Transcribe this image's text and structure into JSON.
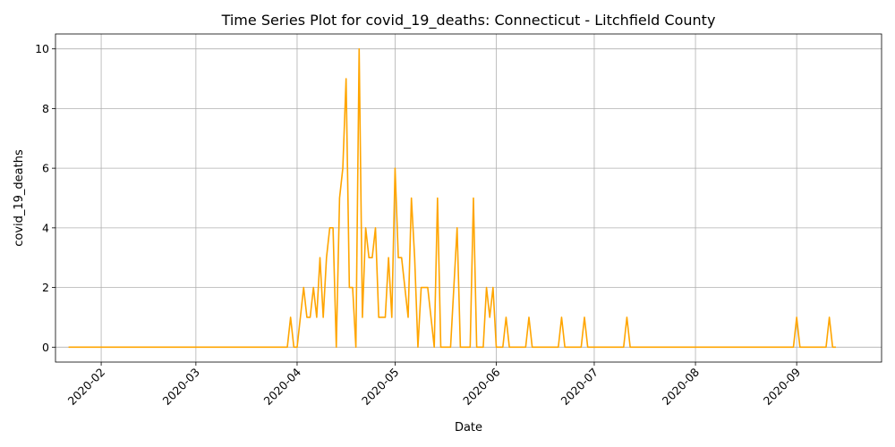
{
  "chart_data": {
    "type": "line",
    "title": "Time Series Plot for covid_19_deaths: Connecticut - Litchfield County",
    "xlabel": "Date",
    "ylabel": "covid_19_deaths",
    "xlim": [
      "2020-01-18",
      "2020-09-27"
    ],
    "ylim": [
      -0.5,
      10.5
    ],
    "grid": true,
    "line_color": "#ffa500",
    "x_ticks": [
      "2020-02-01",
      "2020-03-01",
      "2020-04-01",
      "2020-05-01",
      "2020-06-01",
      "2020-07-01",
      "2020-08-01",
      "2020-09-01"
    ],
    "x_tick_labels": [
      "2020-02",
      "2020-03",
      "2020-04",
      "2020-05",
      "2020-06",
      "2020-07",
      "2020-08",
      "2020-09"
    ],
    "y_ticks": [
      0,
      2,
      4,
      6,
      8,
      10
    ],
    "y_tick_labels": [
      "0",
      "2",
      "4",
      "6",
      "8",
      "10"
    ],
    "series": [
      {
        "points": [
          [
            "2020-01-22",
            0
          ],
          [
            "2020-03-29",
            0
          ],
          [
            "2020-03-30",
            1
          ],
          [
            "2020-03-31",
            0
          ],
          [
            "2020-04-01",
            0
          ],
          [
            "2020-04-02",
            1
          ],
          [
            "2020-04-03",
            2
          ],
          [
            "2020-04-04",
            1
          ],
          [
            "2020-04-05",
            1
          ],
          [
            "2020-04-06",
            2
          ],
          [
            "2020-04-07",
            1
          ],
          [
            "2020-04-08",
            3
          ],
          [
            "2020-04-09",
            1
          ],
          [
            "2020-04-10",
            3
          ],
          [
            "2020-04-11",
            4
          ],
          [
            "2020-04-12",
            4
          ],
          [
            "2020-04-13",
            0
          ],
          [
            "2020-04-14",
            5
          ],
          [
            "2020-04-15",
            6
          ],
          [
            "2020-04-16",
            9
          ],
          [
            "2020-04-17",
            2
          ],
          [
            "2020-04-18",
            2
          ],
          [
            "2020-04-19",
            0
          ],
          [
            "2020-04-20",
            10
          ],
          [
            "2020-04-21",
            1
          ],
          [
            "2020-04-22",
            4
          ],
          [
            "2020-04-23",
            3
          ],
          [
            "2020-04-24",
            3
          ],
          [
            "2020-04-25",
            4
          ],
          [
            "2020-04-26",
            1
          ],
          [
            "2020-04-27",
            1
          ],
          [
            "2020-04-28",
            1
          ],
          [
            "2020-04-29",
            3
          ],
          [
            "2020-04-30",
            1
          ],
          [
            "2020-05-01",
            6
          ],
          [
            "2020-05-02",
            3
          ],
          [
            "2020-05-03",
            3
          ],
          [
            "2020-05-04",
            2
          ],
          [
            "2020-05-05",
            1
          ],
          [
            "2020-05-06",
            5
          ],
          [
            "2020-05-07",
            3
          ],
          [
            "2020-05-08",
            0
          ],
          [
            "2020-05-09",
            2
          ],
          [
            "2020-05-10",
            2
          ],
          [
            "2020-05-11",
            2
          ],
          [
            "2020-05-12",
            1
          ],
          [
            "2020-05-13",
            0
          ],
          [
            "2020-05-14",
            5
          ],
          [
            "2020-05-15",
            0
          ],
          [
            "2020-05-16",
            0
          ],
          [
            "2020-05-17",
            0
          ],
          [
            "2020-05-18",
            0
          ],
          [
            "2020-05-19",
            2
          ],
          [
            "2020-05-20",
            4
          ],
          [
            "2020-05-21",
            0
          ],
          [
            "2020-05-22",
            0
          ],
          [
            "2020-05-23",
            0
          ],
          [
            "2020-05-24",
            0
          ],
          [
            "2020-05-25",
            5
          ],
          [
            "2020-05-26",
            0
          ],
          [
            "2020-05-27",
            0
          ],
          [
            "2020-05-28",
            0
          ],
          [
            "2020-05-29",
            2
          ],
          [
            "2020-05-30",
            1
          ],
          [
            "2020-05-31",
            2
          ],
          [
            "2020-06-01",
            0
          ],
          [
            "2020-06-02",
            0
          ],
          [
            "2020-06-03",
            0
          ],
          [
            "2020-06-04",
            1
          ],
          [
            "2020-06-05",
            0
          ],
          [
            "2020-06-10",
            0
          ],
          [
            "2020-06-11",
            1
          ],
          [
            "2020-06-12",
            0
          ],
          [
            "2020-06-20",
            0
          ],
          [
            "2020-06-21",
            1
          ],
          [
            "2020-06-22",
            0
          ],
          [
            "2020-06-27",
            0
          ],
          [
            "2020-06-28",
            1
          ],
          [
            "2020-06-29",
            0
          ],
          [
            "2020-07-10",
            0
          ],
          [
            "2020-07-11",
            1
          ],
          [
            "2020-07-12",
            0
          ],
          [
            "2020-08-31",
            0
          ],
          [
            "2020-09-01",
            1
          ],
          [
            "2020-09-02",
            0
          ],
          [
            "2020-09-10",
            0
          ],
          [
            "2020-09-11",
            1
          ],
          [
            "2020-09-12",
            0
          ],
          [
            "2020-09-13",
            0
          ]
        ]
      }
    ]
  }
}
